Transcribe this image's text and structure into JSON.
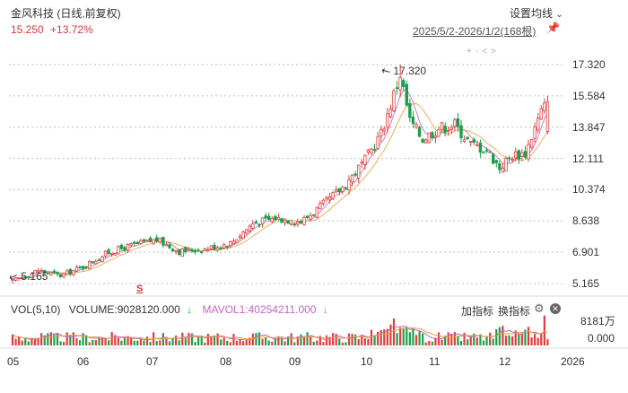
{
  "header": {
    "title": "金风科技 (日线,前复权)",
    "price": "15.250",
    "change": "+13.72%",
    "settings_label": "设置均线",
    "settings_chevron": "⌄",
    "date_range": "2025/5/2-2026/1/2(168根)"
  },
  "price_axis": [
    "17.320",
    "15.584",
    "13.847",
    "12.111",
    "10.374",
    "8.638",
    "6.901",
    "5.165"
  ],
  "annotations": {
    "high_label": "17.320",
    "low_label": "5.165",
    "marker": "S"
  },
  "volume": {
    "label": "VOL(5,10)",
    "value_label": "VOLUME:9028120.000",
    "arrow_down": "↓",
    "mavol_label": "MAVOL1:40254211.000",
    "mavol_arrow": "↓",
    "add_indicator": "加指标",
    "change_indicator": "换指标",
    "axis_top": "8181万",
    "axis_bottom": "0.000"
  },
  "x_axis": [
    "05",
    "06",
    "07",
    "08",
    "09",
    "10",
    "11",
    "12",
    "2026"
  ],
  "colors": {
    "up": "#e03c3c",
    "down": "#1a9f4a",
    "ma1": "#c066c0",
    "ma2": "#e2a23a",
    "accent": "#d03a3a"
  },
  "chart_data": {
    "type": "candlestick",
    "x_range": [
      "2025-05-02",
      "2026-01-02"
    ],
    "bars": 168,
    "ylim": [
      5.165,
      17.32
    ],
    "high": 17.32,
    "low": 5.165,
    "last_close": 15.25,
    "change_pct": 13.72,
    "volume_ylim": [
      0,
      81810000
    ],
    "volume_last": 9028120,
    "mavol1_last": 40254211
  }
}
